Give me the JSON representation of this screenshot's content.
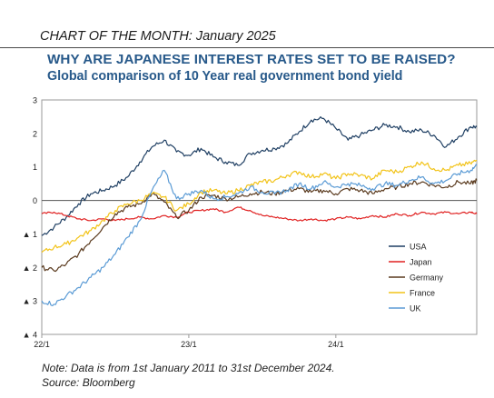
{
  "header": {
    "kicker": "CHART OF THE MONTH: January 2025",
    "title": "WHY ARE JAPANESE INTEREST RATES SET TO BE RAISED?",
    "subtitle": "Global comparison of 10 Year real government bond yield"
  },
  "footer": {
    "note": "Note: Data is from 1st January 2011 to 31st December 2024.",
    "source": "Source: Bloomberg"
  },
  "chart_data": {
    "type": "line",
    "grid": false,
    "legend_position": "bottom-right",
    "ylim": [
      -4,
      3
    ],
    "yticks": [
      3,
      2,
      1,
      0,
      -1,
      -2,
      -3,
      -4
    ],
    "ytick_labels": [
      "3",
      "2",
      "1",
      "0",
      "▲ 1",
      "▲ 2",
      "▲ 3",
      "▲ 4"
    ],
    "x_tick_labels": [
      "22/1",
      "23/1",
      "24/1"
    ],
    "x_tick_positions": [
      0,
      12,
      24
    ],
    "x_range": [
      0,
      35.5
    ],
    "series": [
      {
        "name": "USA",
        "color": "#1f3f63",
        "x": [
          0,
          1,
          2,
          3,
          4,
          5,
          6,
          7,
          8,
          9,
          10,
          11,
          12,
          13,
          14,
          15,
          16,
          17,
          18,
          19,
          20,
          21,
          22,
          23,
          24,
          25,
          26,
          27,
          28,
          29,
          30,
          31,
          32,
          33,
          34,
          35,
          35.5
        ],
        "values": [
          -1.05,
          -0.8,
          -0.5,
          -0.1,
          0.2,
          0.3,
          0.45,
          0.7,
          1.15,
          1.6,
          1.8,
          1.45,
          1.35,
          1.55,
          1.3,
          1.15,
          1.05,
          1.4,
          1.5,
          1.55,
          1.7,
          2.05,
          2.4,
          2.45,
          2.15,
          1.8,
          1.95,
          2.1,
          2.25,
          2.2,
          2.05,
          2.1,
          1.95,
          1.6,
          1.9,
          2.2,
          2.2
        ]
      },
      {
        "name": "Japan",
        "color": "#e02020",
        "x": [
          0,
          1,
          2,
          3,
          4,
          5,
          6,
          7,
          8,
          9,
          10,
          11,
          12,
          13,
          14,
          15,
          16,
          17,
          18,
          19,
          20,
          21,
          22,
          23,
          24,
          25,
          26,
          27,
          28,
          29,
          30,
          31,
          32,
          33,
          34,
          35,
          35.5
        ],
        "values": [
          -0.4,
          -0.35,
          -0.45,
          -0.55,
          -0.6,
          -0.55,
          -0.6,
          -0.55,
          -0.5,
          -0.55,
          -0.45,
          -0.5,
          -0.35,
          -0.3,
          -0.25,
          -0.35,
          -0.2,
          -0.3,
          -0.45,
          -0.5,
          -0.55,
          -0.6,
          -0.55,
          -0.6,
          -0.55,
          -0.5,
          -0.55,
          -0.45,
          -0.5,
          -0.4,
          -0.45,
          -0.35,
          -0.4,
          -0.35,
          -0.4,
          -0.35,
          -0.4
        ]
      },
      {
        "name": "Germany",
        "color": "#5a3a1e",
        "x": [
          0,
          1,
          2,
          3,
          4,
          5,
          6,
          7,
          8,
          9,
          10,
          11,
          12,
          13,
          14,
          15,
          16,
          17,
          18,
          19,
          20,
          21,
          22,
          23,
          24,
          25,
          26,
          27,
          28,
          29,
          30,
          31,
          32,
          33,
          34,
          35,
          35.5
        ],
        "values": [
          -2.0,
          -2.1,
          -1.9,
          -1.6,
          -1.2,
          -0.8,
          -0.4,
          -0.2,
          -0.1,
          0.2,
          -0.05,
          -0.5,
          -0.3,
          0.1,
          0.15,
          0.05,
          0.1,
          0.2,
          0.25,
          0.2,
          0.3,
          0.35,
          0.25,
          0.3,
          0.2,
          0.35,
          0.3,
          0.2,
          0.35,
          0.4,
          0.5,
          0.55,
          0.45,
          0.4,
          0.55,
          0.5,
          0.6
        ]
      },
      {
        "name": "France",
        "color": "#f2c318",
        "x": [
          0,
          1,
          2,
          3,
          4,
          5,
          6,
          7,
          8,
          9,
          10,
          11,
          12,
          13,
          14,
          15,
          16,
          17,
          18,
          19,
          20,
          21,
          22,
          23,
          24,
          25,
          26,
          27,
          28,
          29,
          30,
          31,
          32,
          33,
          34,
          35,
          35.5
        ],
        "values": [
          -1.55,
          -1.4,
          -1.3,
          -1.1,
          -0.9,
          -0.6,
          -0.3,
          -0.1,
          0.0,
          0.2,
          0.1,
          -0.3,
          -0.1,
          0.25,
          0.3,
          0.2,
          0.3,
          0.45,
          0.55,
          0.6,
          0.75,
          0.85,
          0.7,
          0.8,
          0.65,
          0.8,
          0.75,
          0.65,
          0.9,
          0.85,
          1.0,
          1.15,
          0.95,
          0.9,
          1.05,
          1.1,
          1.2
        ]
      },
      {
        "name": "UK",
        "color": "#5b9bd5",
        "x": [
          0,
          1,
          2,
          3,
          4,
          5,
          6,
          7,
          8,
          9,
          10,
          11,
          12,
          13,
          14,
          15,
          16,
          17,
          18,
          19,
          20,
          21,
          22,
          23,
          24,
          25,
          26,
          27,
          28,
          29,
          30,
          31,
          32,
          33,
          34,
          35,
          35.5
        ],
        "values": [
          -3.0,
          -3.1,
          -2.85,
          -2.6,
          -2.3,
          -2.0,
          -1.6,
          -1.1,
          -0.6,
          0.3,
          0.9,
          0.05,
          0.2,
          0.3,
          0.05,
          0.1,
          0.2,
          0.4,
          0.25,
          0.2,
          0.3,
          0.5,
          0.35,
          0.55,
          0.4,
          0.5,
          0.45,
          0.35,
          0.5,
          0.45,
          0.6,
          0.7,
          0.5,
          0.6,
          0.8,
          0.9,
          1.05
        ]
      }
    ]
  }
}
